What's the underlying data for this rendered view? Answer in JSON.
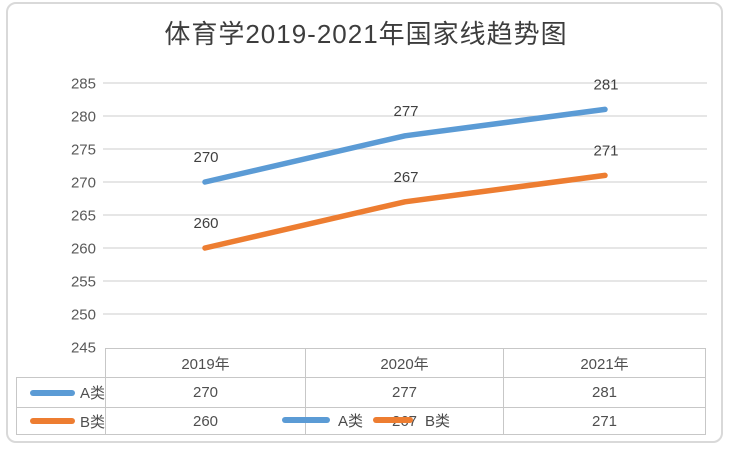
{
  "chart": {
    "title": "体育学2019-2021年国家线趋势图"
  },
  "chart_data": {
    "type": "line",
    "title": "体育学2019-2021年国家线趋势图",
    "categories": [
      "2019年",
      "2020年",
      "2021年"
    ],
    "series": [
      {
        "name": "A类",
        "values": [
          270,
          277,
          281
        ],
        "color": "#5B9BD5"
      },
      {
        "name": "B类",
        "values": [
          260,
          267,
          271
        ],
        "color": "#ED7D31"
      }
    ],
    "xlabel": "",
    "ylabel": "",
    "ylim": [
      245,
      285
    ],
    "ytick_step": 5,
    "grid": true,
    "data_labels": true,
    "legend_position": "bottom-overlapping-table"
  },
  "table": {
    "corner": "",
    "columns": [
      "2019年",
      "2020年",
      "2021年"
    ],
    "rows": [
      {
        "label": "A类",
        "swatch_color": "#5B9BD5",
        "values": [
          "270",
          "277",
          "281"
        ]
      },
      {
        "label": "B类",
        "swatch_color": "#ED7D31",
        "values": [
          "260",
          "267",
          "271"
        ]
      }
    ]
  },
  "legend": {
    "items": [
      {
        "label": "A类",
        "color": "#5B9BD5"
      },
      {
        "label": "B类",
        "color": "#ED7D31"
      }
    ]
  },
  "colors": {
    "series_a": "#5B9BD5",
    "series_b": "#ED7D31",
    "gridline": "#d6d6d6",
    "axis_text": "#595959",
    "card_border": "#d9d9d9",
    "table_border": "#c7c7c7"
  }
}
